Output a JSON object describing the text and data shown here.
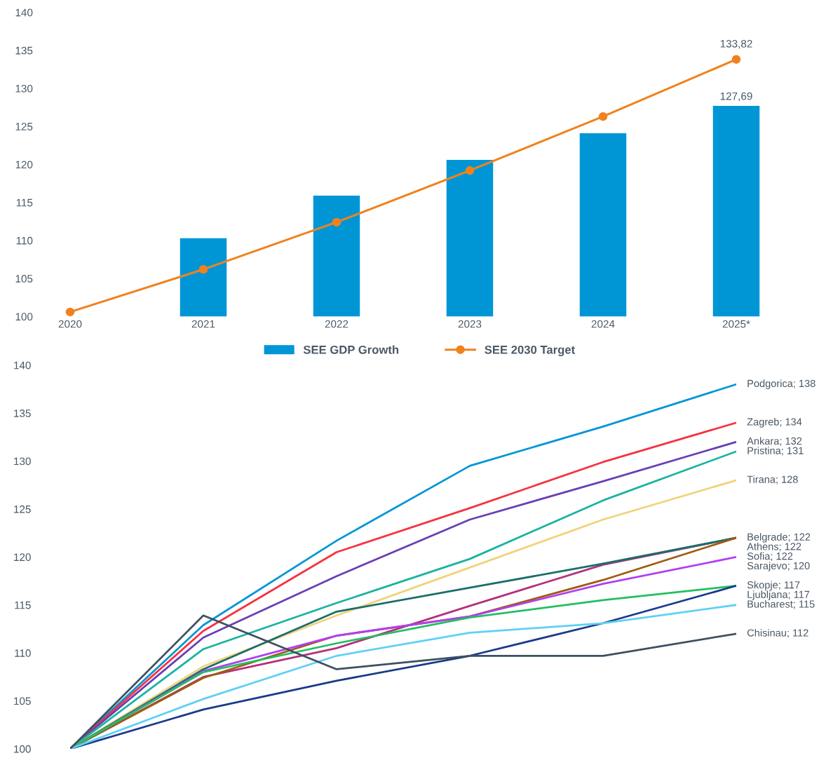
{
  "chart_data": [
    {
      "type": "bar",
      "categories": [
        "2020",
        "2021",
        "2022",
        "2023",
        "2024",
        "2025*"
      ],
      "ylim": [
        100,
        140
      ],
      "yticks": [
        100,
        105,
        110,
        115,
        120,
        125,
        130,
        135,
        140
      ],
      "legend": "bottom",
      "grid": false,
      "series": [
        {
          "type": "bar",
          "name": "SEE GDP Growth",
          "color": "#0096d6",
          "values": [
            null,
            110.3,
            115.9,
            120.6,
            124.1,
            127.69
          ],
          "value_labels": [
            null,
            null,
            null,
            null,
            null,
            "127,69"
          ]
        },
        {
          "type": "line",
          "name": "SEE 2030 Target",
          "color": "#f0821e",
          "marker": "circle",
          "values": [
            100.6,
            106.2,
            112.4,
            119.2,
            126.3,
            133.82
          ],
          "value_labels": [
            null,
            null,
            null,
            null,
            null,
            "133,82"
          ]
        }
      ]
    },
    {
      "type": "line",
      "categories": [
        null,
        null,
        null,
        null,
        null,
        null
      ],
      "ylim": [
        100,
        140
      ],
      "yticks": [
        100,
        105,
        110,
        115,
        120,
        125,
        130,
        135,
        140
      ],
      "tick_labels": "y",
      "grid": false,
      "series": [
        {
          "color": "#0096d6",
          "values": [
            100,
            112.9,
            121.7,
            129.5,
            133.6,
            138
          ],
          "value_labels": [
            null,
            null,
            null,
            null,
            null,
            "Podgorica; 138"
          ]
        },
        {
          "color": "#f5333f",
          "values": [
            100,
            112.3,
            120.5,
            125.1,
            129.9,
            134
          ],
          "value_labels": [
            null,
            null,
            null,
            null,
            null,
            "Zagreb; 134"
          ]
        },
        {
          "color": "#6a3fb5",
          "values": [
            100,
            111.6,
            118.0,
            123.9,
            127.9,
            132
          ],
          "value_labels": [
            null,
            null,
            null,
            null,
            null,
            "Ankara; 132"
          ]
        },
        {
          "color": "#1ab3a0",
          "values": [
            100,
            110.4,
            115.2,
            119.8,
            125.9,
            131
          ],
          "value_labels": [
            null,
            null,
            null,
            null,
            null,
            "Pristina; 131"
          ]
        },
        {
          "color": "#f0d37a",
          "values": [
            100,
            108.6,
            113.9,
            118.9,
            123.9,
            128
          ],
          "value_labels": [
            null,
            null,
            null,
            null,
            null,
            "Tirana; 128"
          ]
        },
        {
          "color": "#b5307c",
          "values": [
            100,
            107.5,
            110.5,
            114.9,
            119.2,
            122
          ],
          "value_labels": [
            null,
            null,
            null,
            null,
            null,
            "Belgrade; 122"
          ]
        },
        {
          "color": "#1a6e6a",
          "values": [
            100,
            108.3,
            114.3,
            116.8,
            119.3,
            122
          ],
          "value_labels": [
            null,
            null,
            null,
            null,
            null,
            "Athens; 122"
          ]
        },
        {
          "color": "#a05a10",
          "values": [
            100,
            107.4,
            111.8,
            113.8,
            117.6,
            122
          ],
          "value_labels": [
            null,
            null,
            null,
            null,
            null,
            "Sofia; 122"
          ]
        },
        {
          "color": "#b040f0",
          "values": [
            100,
            108.1,
            111.8,
            113.8,
            117.2,
            120
          ],
          "value_labels": [
            null,
            null,
            null,
            null,
            null,
            "Sarajevo; 120"
          ]
        },
        {
          "color": "#20c060",
          "values": [
            100,
            108.0,
            111.0,
            113.7,
            115.5,
            117
          ],
          "value_labels": [
            null,
            null,
            null,
            null,
            null,
            "Skopje; 117"
          ]
        },
        {
          "color": "#1a3a8a",
          "values": [
            100,
            104.1,
            107.1,
            109.7,
            113.1,
            117
          ],
          "value_labels": [
            null,
            null,
            null,
            null,
            null,
            "Ljubljana; 117"
          ]
        },
        {
          "color": "#60d0f5",
          "values": [
            100,
            105.2,
            109.7,
            112.1,
            113.1,
            115
          ],
          "value_labels": [
            null,
            null,
            null,
            null,
            null,
            "Bucharest; 115"
          ]
        },
        {
          "color": "#3d5060",
          "values": [
            100,
            113.9,
            108.3,
            109.7,
            109.7,
            112
          ],
          "value_labels": [
            null,
            null,
            null,
            null,
            null,
            "Chisinau; 112"
          ]
        }
      ]
    }
  ]
}
